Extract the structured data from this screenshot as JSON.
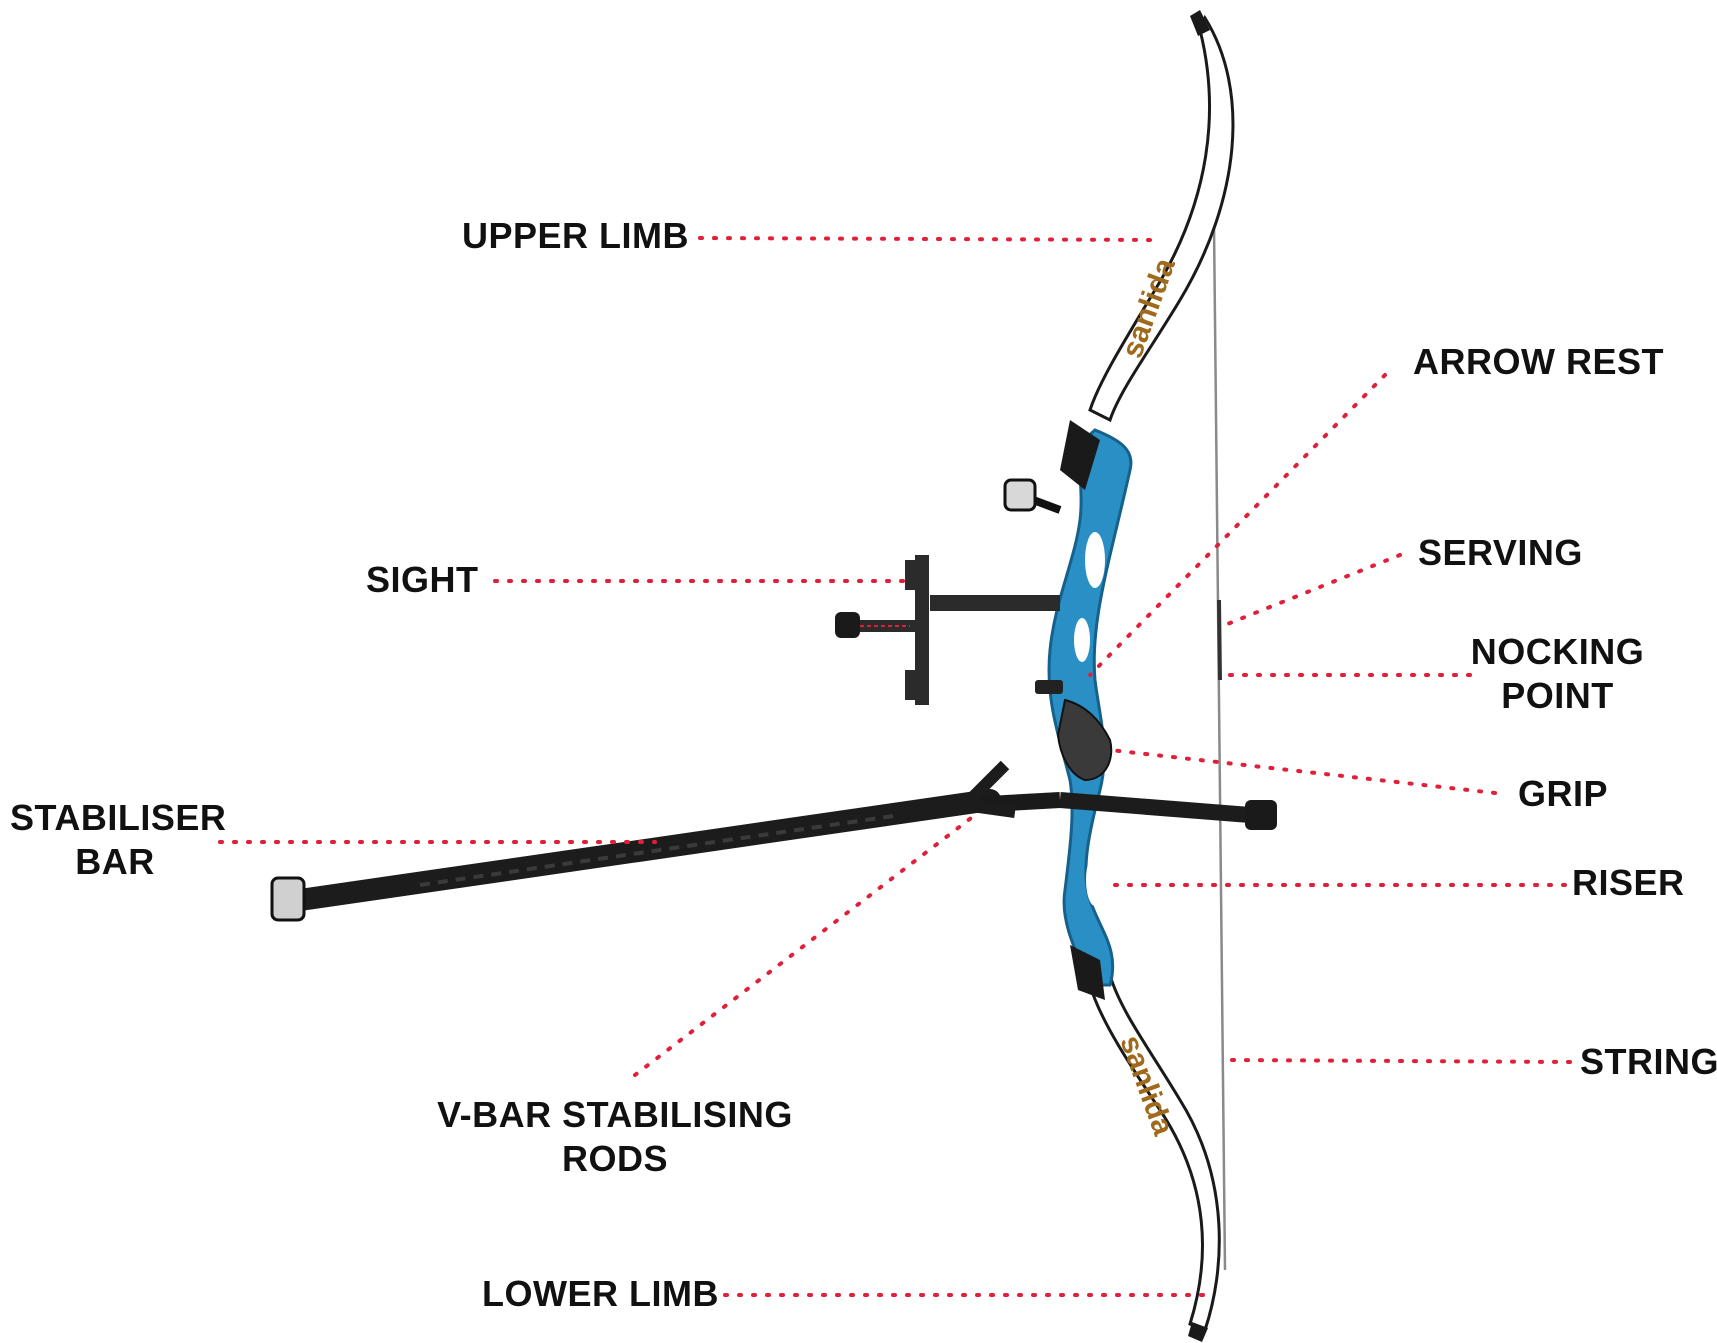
{
  "colors": {
    "leader": "#e0203a",
    "label": "#111111",
    "riser": "#2a8fc4",
    "riser_dark": "#16618c",
    "limb": "#ffffff",
    "limb_edge": "#1a1a1a",
    "carbon": "#1c1c1c",
    "string": "#666666"
  },
  "labels": {
    "upper_limb": "UPPER LIMB",
    "arrow_rest": "ARROW REST",
    "sight": "SIGHT",
    "serving": "SERVING",
    "nocking_point_1": "NOCKING",
    "nocking_point_2": "POINT",
    "grip": "GRIP",
    "stabiliser_bar_1": "STABILISER",
    "stabiliser_bar_2": "BAR",
    "riser": "RISER",
    "string": "STRING",
    "v_bar_1": "V-BAR STABILISING",
    "v_bar_2": "RODS",
    "lower_limb": "LOWER LIMB"
  },
  "icons": {
    "bow": "recurve-bow-illustration"
  }
}
